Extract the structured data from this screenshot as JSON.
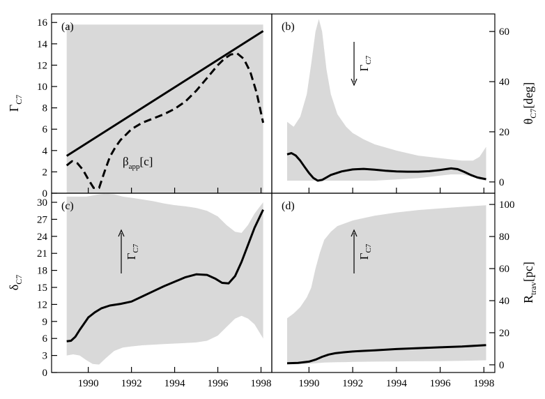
{
  "chart_data": [
    {
      "type": "line",
      "label": "(a)",
      "ylabel": "Γ",
      "ylabel_sub": "C7",
      "ylim": [
        0,
        16.8
      ],
      "yticks": [
        0,
        2,
        4,
        6,
        8,
        10,
        12,
        14,
        16
      ],
      "xlim": [
        1988.3,
        1998.5
      ],
      "xticks": [
        1990,
        1992,
        1994,
        1996,
        1998
      ],
      "band": {
        "x": [
          1989.0,
          1998.1
        ],
        "lower": [
          0,
          0
        ],
        "upper": [
          15.8,
          15.8
        ]
      },
      "series": [
        {
          "style": "solid",
          "x": [
            1989.0,
            1998.1
          ],
          "y": [
            3.5,
            15.2
          ]
        },
        {
          "name": "β",
          "name_sub": "app",
          "name_suffix": "[c]",
          "style": "dashed",
          "x": [
            1989.0,
            1989.25,
            1989.5,
            1989.75,
            1990.0,
            1990.25,
            1990.5,
            1990.75,
            1991.0,
            1991.25,
            1991.5,
            1991.75,
            1992.0,
            1992.5,
            1993.0,
            1993.5,
            1994.0,
            1994.5,
            1995.0,
            1995.5,
            1996.0,
            1996.3,
            1996.6,
            1996.9,
            1997.2,
            1997.5,
            1997.8,
            1998.1
          ],
          "y": [
            2.6,
            3.0,
            2.8,
            2.2,
            1.3,
            0.5,
            0.5,
            2.0,
            3.4,
            4.3,
            5.0,
            5.5,
            6.0,
            6.6,
            7.0,
            7.4,
            7.9,
            8.6,
            9.6,
            10.8,
            12.0,
            12.6,
            13.0,
            13.1,
            12.6,
            11.4,
            9.4,
            6.6
          ]
        }
      ]
    },
    {
      "type": "line",
      "label": "(b)",
      "ylabel": "θ",
      "ylabel_sub": "C7",
      "ylabel_suffix": "[deg]",
      "ylim": [
        -4.5,
        67
      ],
      "yticks": [
        0,
        20,
        40,
        60
      ],
      "xlim": [
        1988.3,
        1998.5
      ],
      "xticks": [
        1990,
        1992,
        1994,
        1996,
        1998
      ],
      "arrow_label": "Γ",
      "arrow_label_sub": "C7",
      "arrow_direction": "down",
      "band": {
        "x": [
          1989.0,
          1989.3,
          1989.6,
          1989.9,
          1990.1,
          1990.3,
          1990.45,
          1990.6,
          1990.8,
          1991.0,
          1991.3,
          1991.7,
          1992.0,
          1992.5,
          1993.0,
          1994.0,
          1995.0,
          1996.0,
          1996.5,
          1997.0,
          1997.5,
          1997.8,
          1998.1
        ],
        "lower": [
          0.5,
          0.5,
          0.5,
          0.5,
          0.5,
          0.5,
          0.5,
          0.5,
          0.5,
          0.5,
          0.5,
          0.5,
          0.5,
          0.5,
          0.5,
          1.0,
          1.5,
          2.5,
          3.0,
          3.0,
          2.0,
          1.0,
          0.5
        ],
        "upper": [
          24.0,
          22.0,
          26.0,
          35.0,
          47.0,
          60.0,
          65.0,
          60.0,
          45.0,
          35.0,
          27.0,
          22.0,
          19.5,
          17.0,
          15.0,
          12.5,
          10.5,
          9.5,
          9.0,
          8.5,
          8.5,
          10.0,
          14.0
        ]
      },
      "series": [
        {
          "style": "solid",
          "x": [
            1989.0,
            1989.2,
            1989.4,
            1989.6,
            1989.8,
            1990.0,
            1990.2,
            1990.4,
            1990.6,
            1990.8,
            1991.0,
            1991.5,
            1992.0,
            1992.5,
            1993.0,
            1993.5,
            1994.0,
            1994.5,
            1995.0,
            1995.5,
            1996.0,
            1996.5,
            1996.8,
            1997.1,
            1997.4,
            1997.7,
            1998.1
          ],
          "y": [
            11.0,
            11.5,
            10.5,
            8.5,
            6.0,
            3.6,
            1.6,
            0.5,
            0.8,
            1.8,
            2.8,
            4.2,
            5.0,
            5.2,
            4.9,
            4.5,
            4.2,
            4.1,
            4.1,
            4.3,
            4.8,
            5.4,
            5.1,
            4.0,
            2.8,
            1.8,
            1.1
          ]
        }
      ]
    },
    {
      "type": "line",
      "label": "(c)",
      "ylabel": "δ",
      "ylabel_sub": "C7",
      "ylim": [
        0,
        31.6
      ],
      "yticks": [
        0,
        3,
        6,
        9,
        12,
        15,
        18,
        21,
        24,
        27,
        30
      ],
      "xlim": [
        1988.3,
        1998.5
      ],
      "xticks": [
        1990,
        1992,
        1994,
        1996,
        1998
      ],
      "arrow_label": "Γ",
      "arrow_label_sub": "C7",
      "arrow_direction": "up",
      "band": {
        "x": [
          1989.0,
          1989.3,
          1989.6,
          1989.9,
          1990.2,
          1990.5,
          1990.8,
          1991.2,
          1991.6,
          1992.0,
          1992.5,
          1993.0,
          1993.5,
          1994.0,
          1994.5,
          1995.0,
          1995.5,
          1996.0,
          1996.4,
          1996.8,
          1997.1,
          1997.4,
          1997.7,
          1998.1
        ],
        "lower": [
          3.0,
          3.2,
          3.0,
          2.2,
          1.5,
          1.4,
          2.5,
          3.8,
          4.4,
          4.6,
          4.8,
          4.9,
          5.0,
          5.1,
          5.2,
          5.3,
          5.6,
          6.5,
          8.0,
          9.5,
          10.0,
          9.5,
          8.5,
          6.0
        ],
        "upper": [
          31.0,
          31.0,
          31.0,
          31.0,
          31.2,
          31.4,
          31.5,
          31.4,
          31.0,
          30.8,
          30.5,
          30.2,
          29.8,
          29.5,
          29.3,
          29.0,
          28.5,
          27.5,
          26.0,
          24.8,
          24.6,
          26.0,
          28.0,
          30.0
        ]
      },
      "series": [
        {
          "style": "solid",
          "x": [
            1989.0,
            1989.2,
            1989.4,
            1989.6,
            1989.8,
            1990.0,
            1990.3,
            1990.6,
            1991.0,
            1991.5,
            1992.0,
            1992.5,
            1993.0,
            1993.5,
            1994.0,
            1994.5,
            1995.0,
            1995.5,
            1995.9,
            1996.2,
            1996.5,
            1996.8,
            1997.1,
            1997.4,
            1997.7,
            1998.1
          ],
          "y": [
            5.5,
            5.6,
            6.3,
            7.5,
            8.6,
            9.7,
            10.6,
            11.3,
            11.8,
            12.1,
            12.5,
            13.4,
            14.3,
            15.2,
            16.0,
            16.8,
            17.3,
            17.2,
            16.5,
            15.8,
            15.7,
            17.0,
            19.5,
            22.5,
            25.5,
            28.7
          ]
        }
      ]
    },
    {
      "type": "line",
      "label": "(d)",
      "ylabel": "R",
      "ylabel_sub": "trav",
      "ylabel_suffix": "[pc]",
      "ylim": [
        -4.8,
        107
      ],
      "yticks": [
        0,
        20,
        40,
        60,
        80,
        100
      ],
      "xlim": [
        1988.3,
        1998.5
      ],
      "xticks": [
        1990,
        1992,
        1994,
        1996,
        1998
      ],
      "arrow_label": "Γ",
      "arrow_label_sub": "C7",
      "arrow_direction": "up",
      "band": {
        "x": [
          1989.0,
          1989.3,
          1989.6,
          1989.9,
          1990.1,
          1990.3,
          1990.5,
          1990.7,
          1991.0,
          1991.3,
          1991.7,
          1992.0,
          1992.5,
          1993.0,
          1994.0,
          1995.0,
          1996.0,
          1997.0,
          1998.1
        ],
        "lower": [
          0.3,
          0.3,
          0.4,
          0.6,
          0.8,
          1.0,
          1.2,
          1.4,
          1.5,
          1.6,
          1.7,
          1.8,
          1.9,
          2.0,
          2.1,
          2.2,
          2.3,
          2.5,
          2.8
        ],
        "upper": [
          29.0,
          32.0,
          36.0,
          42.0,
          48.0,
          60.0,
          70.0,
          78.0,
          83.0,
          86.5,
          88.5,
          90.0,
          91.5,
          93.0,
          95.0,
          96.5,
          97.5,
          98.5,
          99.5
        ]
      },
      "series": [
        {
          "style": "solid",
          "x": [
            1989.0,
            1989.5,
            1990.0,
            1990.3,
            1990.6,
            1990.9,
            1991.2,
            1991.6,
            1992.0,
            1992.5,
            1993.0,
            1994.0,
            1995.0,
            1996.0,
            1997.0,
            1998.1
          ],
          "y": [
            1.0,
            1.2,
            2.0,
            3.2,
            5.0,
            6.4,
            7.2,
            7.8,
            8.3,
            8.7,
            9.0,
            9.8,
            10.4,
            10.9,
            11.4,
            12.3
          ]
        }
      ]
    }
  ]
}
